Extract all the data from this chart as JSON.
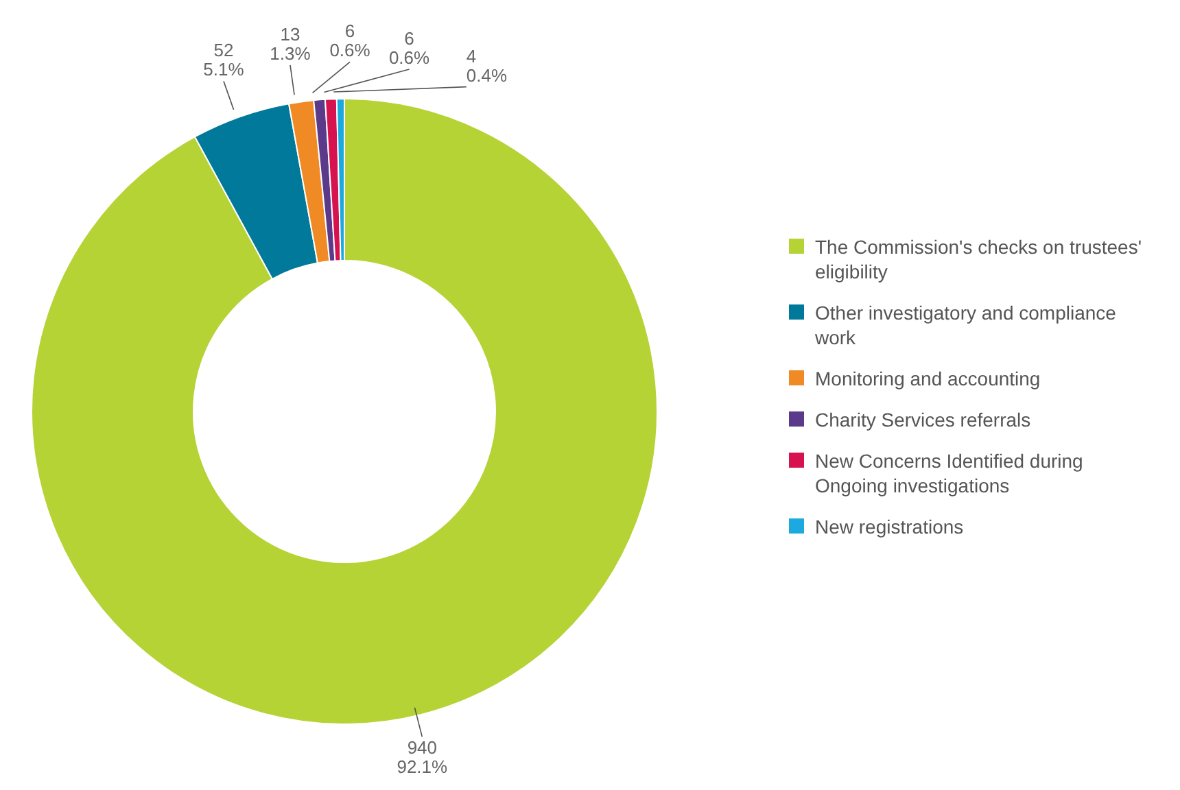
{
  "chart_data": {
    "type": "donut",
    "categories": [
      "The Commission's checks on trustees' eligibility",
      "Other investigatory and compliance work",
      "Monitoring and accounting",
      "Charity Services referrals",
      "New Concerns Identified during Ongoing investigations",
      "New registrations"
    ],
    "values": [
      940,
      52,
      13,
      6,
      6,
      4
    ],
    "colors": [
      "#b5d334",
      "#00799a",
      "#f08a24",
      "#5b3a8c",
      "#d6124f",
      "#1ba9e0"
    ],
    "value_labels": [
      "940\n92.1%",
      "52\n5.1%",
      "13\n1.3%",
      "6\n0.6%",
      "6\n0.6%",
      "4\n0.4%"
    ],
    "legend": "right"
  }
}
